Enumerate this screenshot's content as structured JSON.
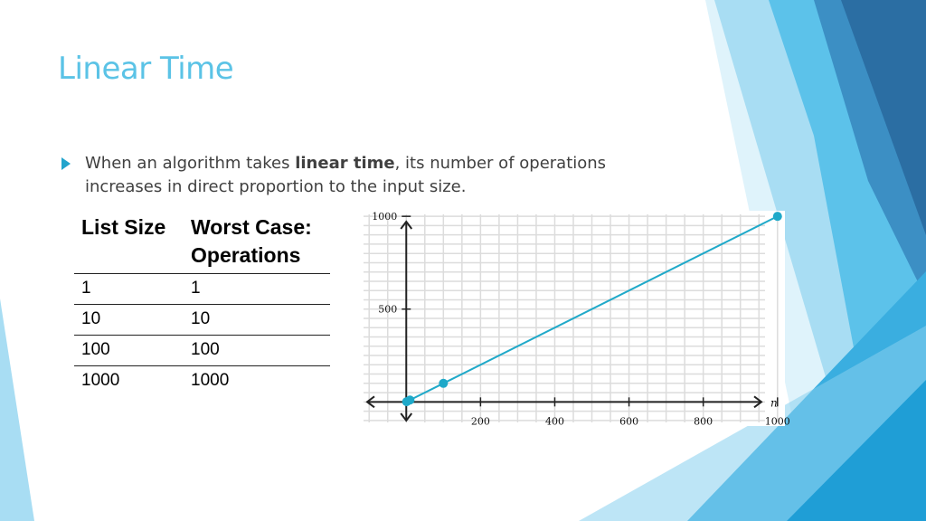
{
  "slide": {
    "title": "Linear Time",
    "bullet": {
      "pre": "When an algorithm takes ",
      "bold": "linear time",
      "post": ", its number of operations increases in direct proportion to the input size."
    }
  },
  "table": {
    "headers": [
      "List Size",
      "Worst Case: Operations"
    ],
    "rows": [
      [
        "1",
        "1"
      ],
      [
        "10",
        "10"
      ],
      [
        "100",
        "100"
      ],
      [
        "1000",
        "1000"
      ]
    ]
  },
  "colors": {
    "title": "#5bc3e6",
    "accent": "#22a4cc",
    "line": "#1fa9c9",
    "deco_light": "#a8ddf3",
    "deco_mid": "#5cc2ea",
    "deco_dark": "#2b6ea3"
  },
  "chart_data": {
    "type": "line",
    "x_axis_label": "n",
    "x_ticks": [
      200,
      400,
      600,
      800,
      1000
    ],
    "y_ticks": [
      500,
      1000
    ],
    "xlim": [
      -120,
      1020
    ],
    "ylim": [
      -130,
      1030
    ],
    "grid": true,
    "series": [
      {
        "x": [
          1,
          10,
          100,
          1000
        ],
        "y": [
          1,
          10,
          100,
          1000
        ]
      }
    ]
  }
}
